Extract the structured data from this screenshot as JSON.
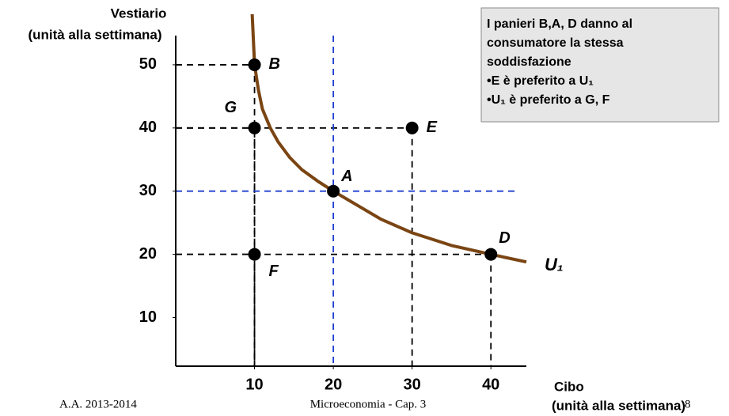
{
  "chart_data": {
    "type": "scatter",
    "y_label": [
      "Vestiario",
      "(unità alla settimana)"
    ],
    "x_label": [
      "Cibo",
      "(unità alla settimana)"
    ],
    "xlim": [
      0,
      44.5
    ],
    "ylim": [
      2.3,
      58
    ],
    "xticks": [
      10,
      20,
      30,
      40
    ],
    "yticks": [
      10,
      20,
      30,
      40,
      50
    ],
    "points": {
      "labels": [
        "B",
        "G",
        "E",
        "A",
        "F",
        "D"
      ],
      "x": [
        10,
        10,
        30,
        20,
        10,
        40
      ],
      "y": [
        50,
        40,
        40,
        30,
        20,
        20
      ],
      "color": "#000000",
      "guide_colors": [
        "#000000",
        "#000000",
        "#000000",
        "#1f3fd0",
        "#000000",
        "#000000"
      ]
    },
    "curve": {
      "name": "U₁",
      "color": "#7a4513",
      "x": [
        9.7,
        9.85,
        10,
        10.5,
        11,
        12,
        13,
        14.5,
        16,
        18,
        20,
        23,
        26,
        30,
        35,
        40,
        44.5
      ],
      "y": [
        58,
        54,
        50,
        46,
        43,
        40,
        37.8,
        35.3,
        33.4,
        31.6,
        30,
        27.8,
        25.6,
        23.4,
        21.4,
        20,
        18.8
      ]
    },
    "note": [
      "I panieri B,A, D danno al",
      "consumatore la stessa",
      "soddisfazione",
      "•E  è  preferito a U₁",
      "•U₁ è preferito a G, F"
    ]
  },
  "footer": {
    "left": "A.A. 2013-2014",
    "center": "Microeconomia - Cap. 3",
    "right": "8"
  }
}
